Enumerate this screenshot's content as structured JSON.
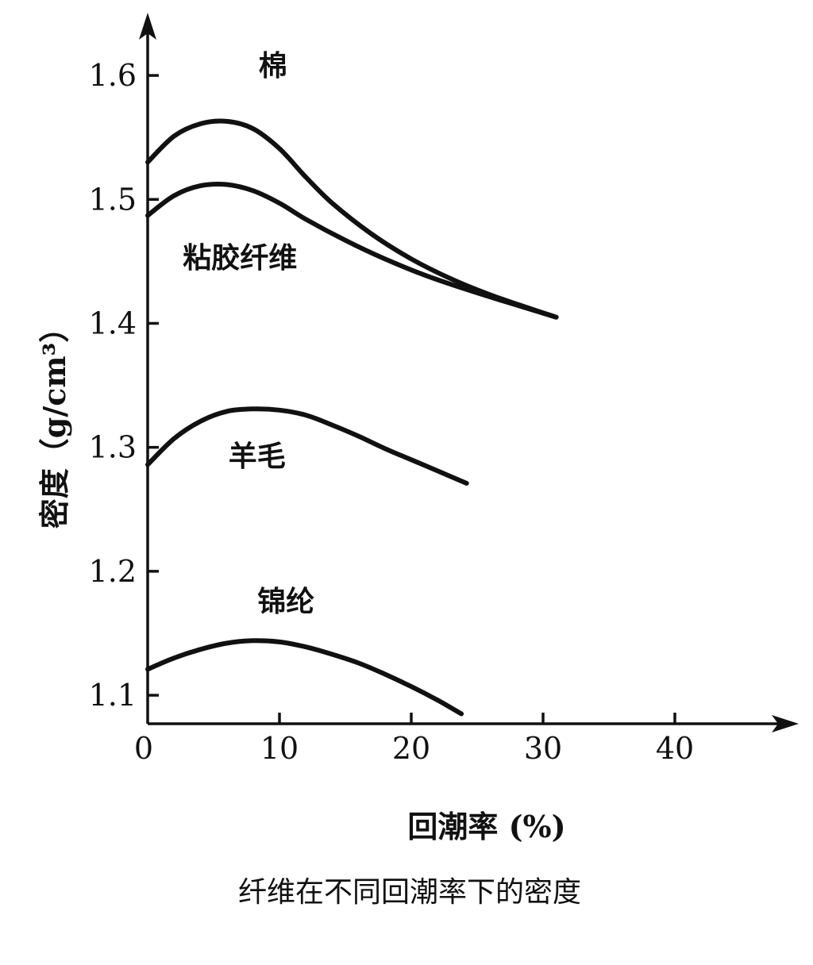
{
  "chart_data": {
    "type": "line",
    "title": "纤维在不同回潮率下的密度",
    "xlabel": "回潮率 (%)",
    "ylabel": "密度（g/cm³）",
    "xlim": [
      0,
      48
    ],
    "ylim": [
      1.077,
      1.66
    ],
    "x_ticks": [
      "0",
      "10",
      "20",
      "30",
      "40"
    ],
    "x_tick_values": [
      0,
      10,
      20,
      30,
      40
    ],
    "y_ticks": [
      "1.1",
      "1.2",
      "1.3",
      "1.4",
      "1.5",
      "1.6"
    ],
    "y_tick_values": [
      1.1,
      1.2,
      1.3,
      1.4,
      1.5,
      1.6
    ],
    "grid": false,
    "series": [
      {
        "name": "棉",
        "x": [
          0,
          2,
          4,
          6,
          8,
          10,
          12,
          14,
          17,
          20,
          23,
          26,
          29,
          31
        ],
        "y": [
          1.53,
          1.551,
          1.561,
          1.563,
          1.557,
          1.541,
          1.518,
          1.497,
          1.472,
          1.452,
          1.436,
          1.423,
          1.412,
          1.405
        ]
      },
      {
        "name": "粘胶纤维",
        "x": [
          0,
          2,
          4,
          6,
          8,
          10,
          12,
          15,
          18,
          21,
          24,
          27,
          31
        ],
        "y": [
          1.487,
          1.503,
          1.511,
          1.512,
          1.507,
          1.497,
          1.484,
          1.467,
          1.452,
          1.439,
          1.428,
          1.418,
          1.405
        ]
      },
      {
        "name": "羊毛",
        "x": [
          0,
          2,
          4,
          6,
          8,
          10,
          12,
          14,
          16,
          18,
          20,
          22,
          24.2
        ],
        "y": [
          1.286,
          1.307,
          1.321,
          1.329,
          1.331,
          1.33,
          1.326,
          1.318,
          1.309,
          1.299,
          1.29,
          1.281,
          1.271
        ]
      },
      {
        "name": "锦纶",
        "x": [
          0,
          2,
          4,
          6,
          8,
          10,
          12,
          14,
          16,
          18,
          20,
          22,
          23.8
        ],
        "y": [
          1.121,
          1.13,
          1.137,
          1.142,
          1.144,
          1.143,
          1.139,
          1.133,
          1.126,
          1.117,
          1.107,
          1.096,
          1.085
        ]
      }
    ],
    "series_labels": [
      {
        "text": "棉",
        "x": 9.5,
        "y": 1.6
      },
      {
        "text": "粘胶纤维",
        "x": 7,
        "y": 1.445
      },
      {
        "text": "羊毛",
        "x": 8.3,
        "y": 1.285
      },
      {
        "text": "锦纶",
        "x": 10.5,
        "y": 1.168
      }
    ]
  }
}
